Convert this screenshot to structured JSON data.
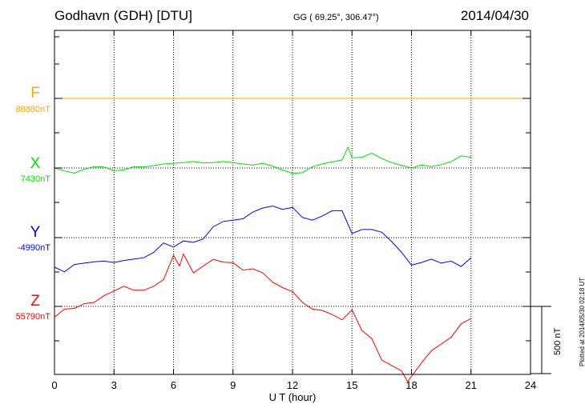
{
  "header": {
    "station": "Godhavn (GDH)  [DTU]",
    "coords": "GG ( 69.25°, 306.47°)",
    "date": "2014/04/30"
  },
  "footer": {
    "plotted": "Plotted at 2014/05/30 02:18 UT"
  },
  "chart_data": {
    "type": "line",
    "xlabel": "U T (hour)",
    "xlim": [
      0,
      24
    ],
    "x_ticks": [
      "0",
      "3",
      "6",
      "9",
      "12",
      "15",
      "18",
      "21",
      "24"
    ],
    "scale_bar": "500 nT",
    "grid": true,
    "series": [
      {
        "name": "F",
        "baseline": "88880nT",
        "color": "#ffa500",
        "x": [
          0,
          3,
          6,
          9,
          12,
          15,
          18,
          21,
          24
        ],
        "y": [
          0,
          0,
          0,
          0,
          0,
          0,
          0,
          0,
          0
        ]
      },
      {
        "name": "X",
        "baseline": "7430nT",
        "color": "#00e000",
        "x": [
          0,
          0.5,
          1,
          1.5,
          2,
          2.5,
          3,
          3.5,
          4,
          4.5,
          5,
          5.5,
          6,
          6.5,
          7,
          7.5,
          8,
          8.5,
          9,
          9.5,
          10,
          10.5,
          11,
          11.5,
          12,
          12.5,
          13,
          13.5,
          14,
          14.5,
          14.8,
          15,
          15.5,
          16,
          16.5,
          17,
          17.5,
          18,
          18.5,
          19,
          19.5,
          20,
          20.5,
          21
        ],
        "y": [
          0,
          -22,
          -38,
          -10,
          10,
          8,
          -20,
          -15,
          10,
          8,
          18,
          30,
          35,
          40,
          48,
          38,
          40,
          48,
          40,
          30,
          22,
          35,
          14,
          -15,
          -40,
          -35,
          10,
          30,
          45,
          60,
          155,
          75,
          80,
          110,
          70,
          40,
          20,
          0,
          22,
          10,
          25,
          48,
          90,
          80
        ]
      },
      {
        "name": "Y",
        "baseline": "-4990nT",
        "color": "#0000ff",
        "x": [
          0,
          0.5,
          1,
          1.5,
          2,
          2.5,
          3,
          3.5,
          4,
          4.5,
          5,
          5.5,
          6,
          6.5,
          7,
          7.5,
          8,
          8.5,
          9,
          9.5,
          10,
          10.5,
          11,
          11.5,
          12,
          12.5,
          13,
          13.5,
          14,
          14.5,
          15,
          15.5,
          16,
          16.5,
          17,
          17.5,
          18,
          18.5,
          19,
          19.5,
          20,
          20.5,
          21
        ],
        "y": [
          -220,
          -255,
          -200,
          -190,
          -180,
          -175,
          -185,
          -170,
          -160,
          -150,
          -110,
          -40,
          -70,
          -25,
          -35,
          -10,
          80,
          120,
          130,
          140,
          190,
          220,
          235,
          210,
          225,
          150,
          130,
          160,
          200,
          200,
          30,
          60,
          60,
          40,
          -30,
          -110,
          -205,
          -185,
          -160,
          -190,
          -175,
          -215,
          -150
        ]
      },
      {
        "name": "Z",
        "baseline": "55790nT",
        "color": "#ff0000",
        "x": [
          0,
          0.5,
          1,
          1.5,
          2,
          2.5,
          3,
          3.5,
          4,
          4.5,
          5,
          5.5,
          6,
          6.3,
          6.5,
          7,
          7.5,
          8,
          8.5,
          9,
          9.5,
          10,
          10.5,
          11,
          11.5,
          12,
          12.5,
          13,
          13.5,
          14,
          14.5,
          15,
          15.5,
          16,
          16.5,
          17,
          17.5,
          17.8,
          18,
          18.5,
          19,
          19.5,
          20,
          20.5,
          21
        ],
        "y": [
          -80,
          -20,
          -15,
          20,
          30,
          80,
          115,
          150,
          120,
          120,
          150,
          200,
          380,
          300,
          390,
          250,
          300,
          350,
          330,
          325,
          270,
          280,
          250,
          180,
          140,
          110,
          30,
          -20,
          -30,
          -60,
          -100,
          -25,
          -180,
          -240,
          -400,
          -440,
          -480,
          -560,
          -520,
          -420,
          -330,
          -280,
          -230,
          -130,
          -90
        ]
      }
    ]
  }
}
